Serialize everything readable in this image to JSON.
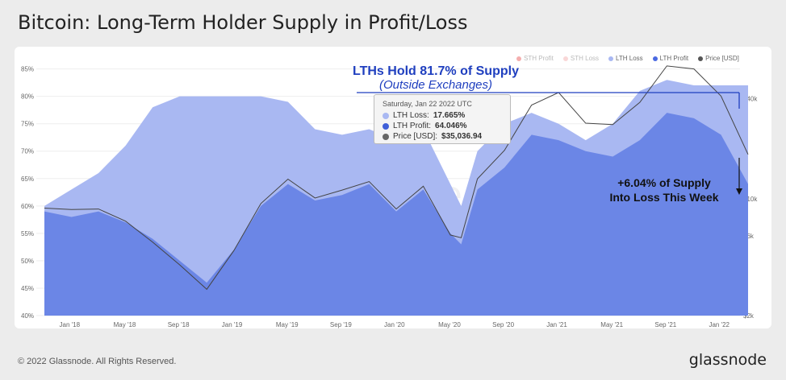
{
  "title": "Bitcoin: Long-Term Holder Supply in Profit/Loss",
  "footer": "© 2022 Glassnode. All Rights Reserved.",
  "brand": "glassnode",
  "watermark": "glassnode",
  "legend": [
    {
      "label": "STH Profit",
      "color": "#e84d4d",
      "dim": true
    },
    {
      "label": "STH Loss",
      "color": "#f3a7a7",
      "dim": true
    },
    {
      "label": "LTH Loss",
      "color": "#a9b8f2",
      "dim": false
    },
    {
      "label": "LTH Profit",
      "color": "#4a69e2",
      "dim": false
    },
    {
      "label": "Price [USD]",
      "color": "#555555",
      "dim": false
    }
  ],
  "annotations": {
    "hold_head": "LTHs Hold 81.7% of Supply",
    "hold_sub": "(Outside Exchanges)",
    "loss_line1": "+6.04% of Supply",
    "loss_line2": "Into Loss This Week"
  },
  "tooltip": {
    "date": "Saturday, Jan 22 2022 UTC",
    "rows": [
      {
        "label": "LTH Loss:",
        "value": "17.665%",
        "color": "#a9b8f2"
      },
      {
        "label": "LTH Profit:",
        "value": "64.046%",
        "color": "#3f5fd8"
      },
      {
        "label": "Price [USD]:",
        "value": "$35,036.94",
        "color": "#666666"
      }
    ]
  },
  "chart_data": {
    "type": "area",
    "x_ticks": [
      "Jan '18",
      "May '18",
      "Sep '18",
      "Jan '19",
      "May '19",
      "Sep '19",
      "Jan '20",
      "May '20",
      "Sep '20",
      "Jan '21",
      "May '21",
      "Sep '21",
      "Jan '22"
    ],
    "y_left_ticks": [
      "85%",
      "80%",
      "75%",
      "70%",
      "65%",
      "60%",
      "55%",
      "50%",
      "45%",
      "40%"
    ],
    "y_right_ticks": [
      "$40k",
      "$10k",
      "$6k",
      "$2k"
    ],
    "ylim_left": [
      40,
      87
    ],
    "x": [
      0,
      0.5,
      1,
      1.5,
      2,
      2.5,
      3,
      3.5,
      4,
      4.5,
      5,
      5.5,
      6,
      6.5,
      7,
      7.5,
      7.7,
      8,
      8.5,
      9,
      9.5,
      10,
      10.5,
      11,
      11.5,
      12,
      12.5,
      13
    ],
    "series": [
      {
        "name": "LTH Profit",
        "values": [
          59,
          58,
          59,
          57,
          54,
          50,
          46,
          52,
          60,
          64,
          61,
          62,
          64,
          59,
          63,
          55,
          53,
          63,
          67,
          73,
          72,
          70,
          69,
          72,
          77,
          76,
          73,
          64
        ]
      },
      {
        "name": "LTH Loss",
        "values": [
          60,
          63,
          66,
          71,
          78,
          80,
          80,
          80,
          80,
          79,
          74,
          73,
          74,
          72,
          74,
          64,
          60,
          70,
          75,
          77,
          75,
          72,
          75,
          81,
          83,
          82,
          82,
          82
        ]
      },
      {
        "name": "Price [USD]",
        "values": [
          4,
          9,
          3,
          1.5,
          -4,
          -5,
          -8,
          -1,
          3,
          6,
          3,
          6,
          3,
          3,
          4,
          -2,
          8,
          13,
          21,
          36,
          58,
          34,
          39,
          46,
          57,
          60,
          47,
          36
        ]
      }
    ]
  }
}
